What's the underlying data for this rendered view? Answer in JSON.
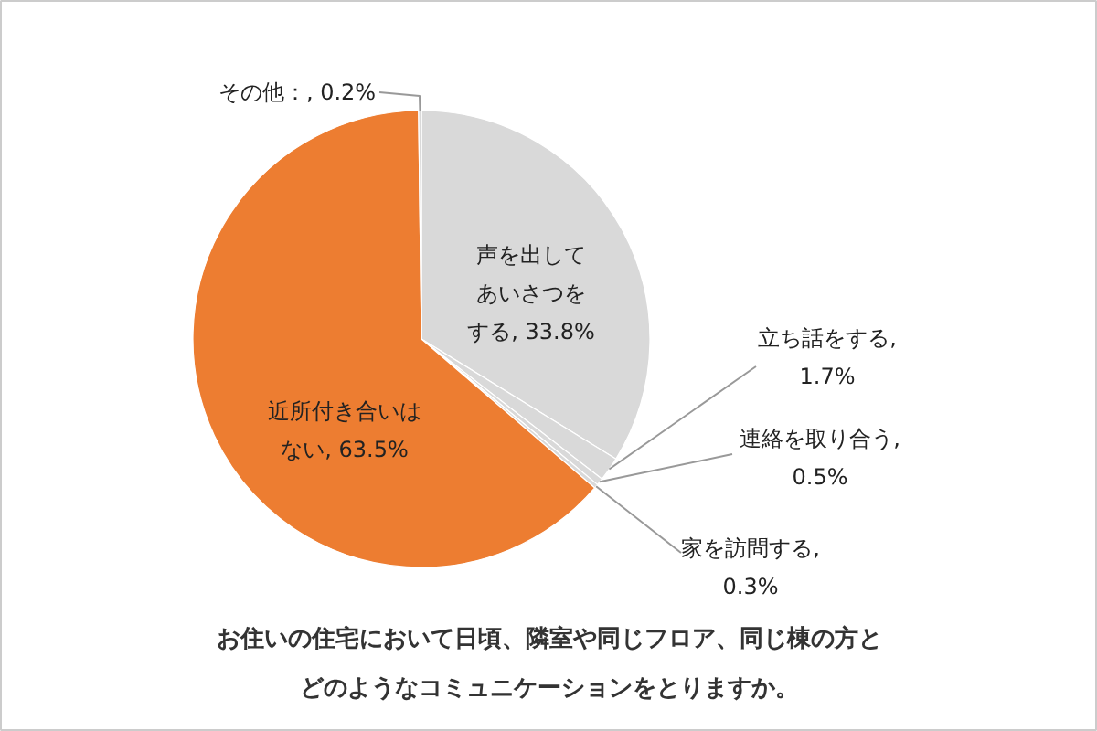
{
  "chart_data": {
    "type": "pie",
    "title": "お住いの住宅において日頃、隣室や同じフロア、同じ棟の方とどのようなコミュニケーションをとりますか。",
    "categories": [
      "声を出してあいさつをする",
      "立ち話をする",
      "連絡を取り合う",
      "家を訪問する",
      "近所付き合いはない",
      "その他"
    ],
    "values": [
      33.8,
      1.7,
      0.5,
      0.3,
      63.5,
      0.2
    ],
    "value_labels": [
      ", 33.8%",
      ", 1.7%",
      ", 0.5%",
      ", 0.3%",
      ", 63.5%",
      "：, 0.2%"
    ],
    "colors": [
      "#d9d9d9",
      "#d9d9d9",
      "#d9d9d9",
      "#d9d9d9",
      "#ed7d31",
      "#d9d9d9"
    ]
  }
}
